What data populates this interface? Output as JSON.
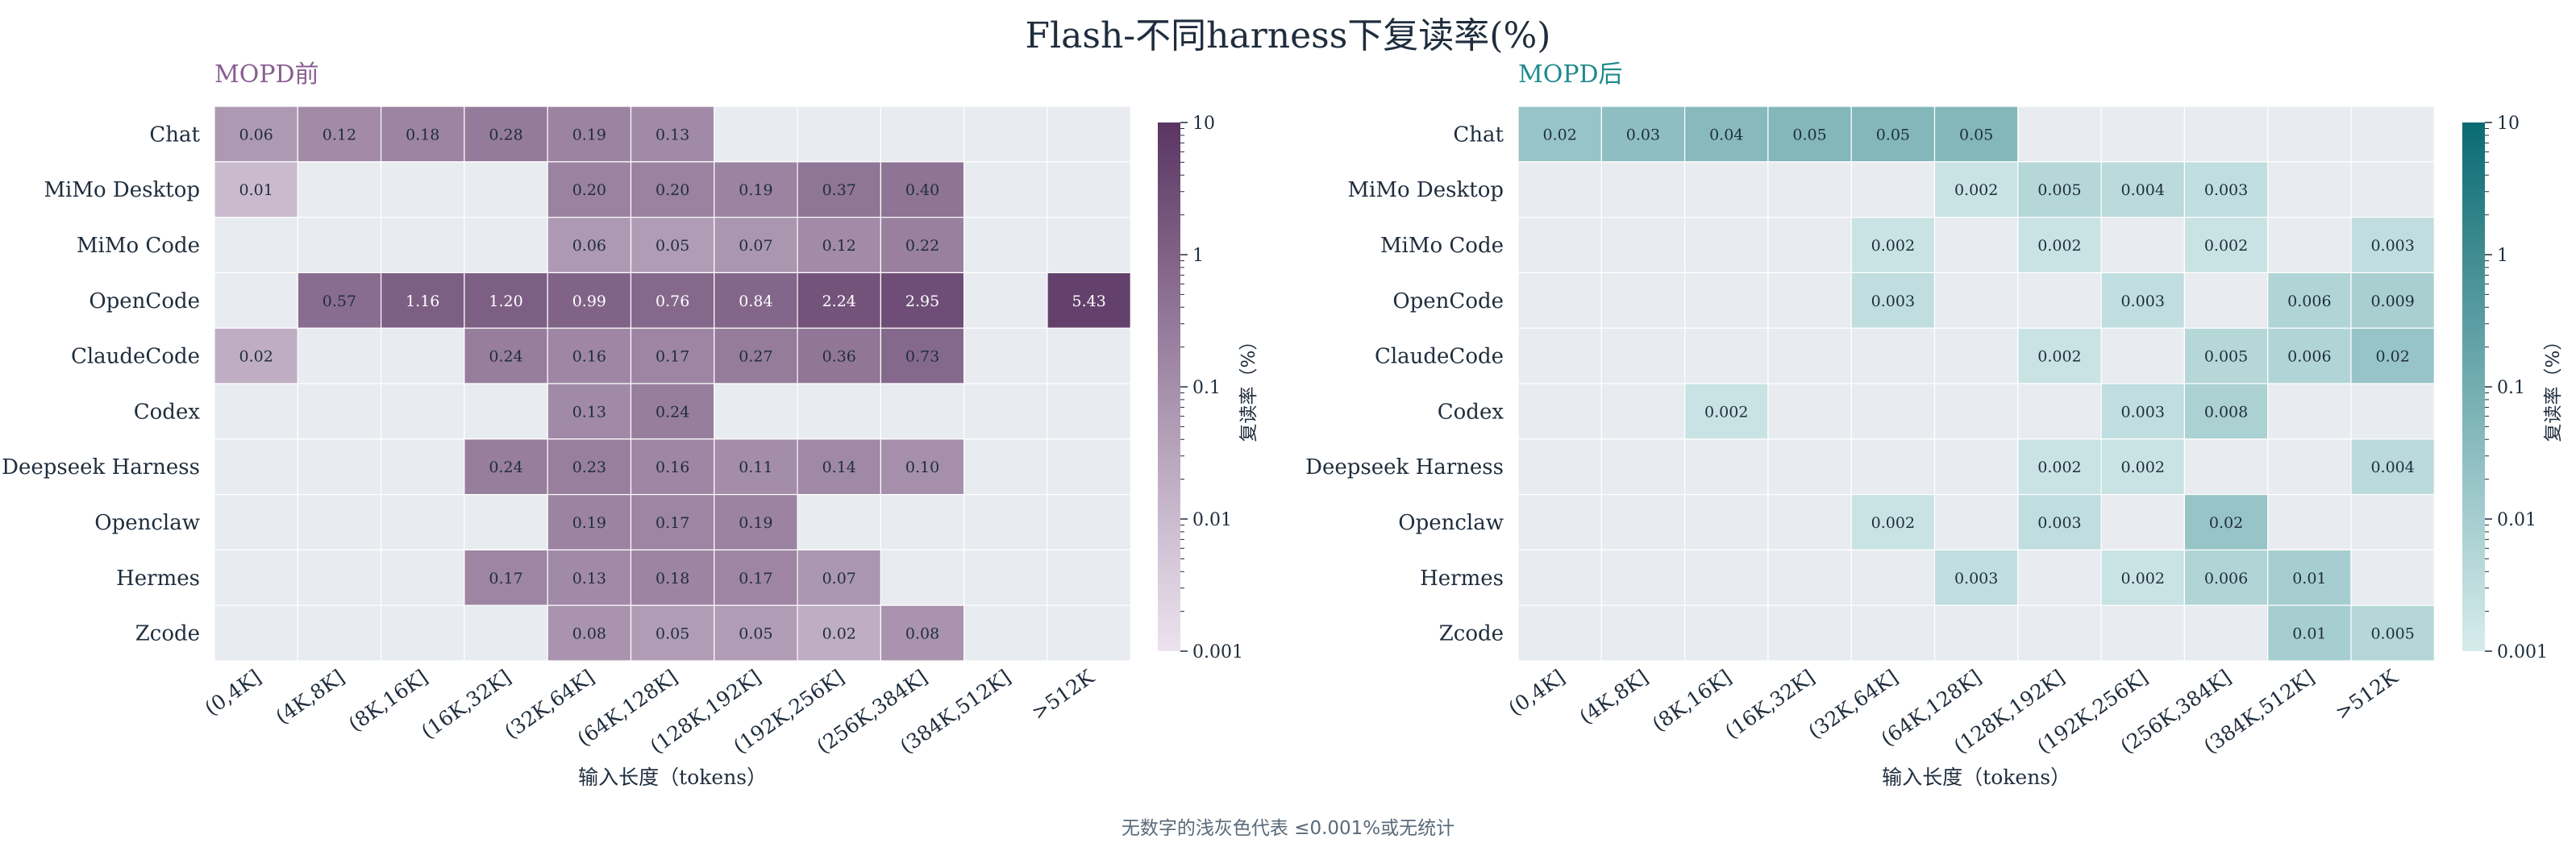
{
  "figure": {
    "title": "Flash-不同harness下复读率(%)",
    "footnote": "无数字的浅灰色代表 ≤0.001%或无统计"
  },
  "colors": {
    "empty_cell": "#e8ebf0",
    "purple_low": "#ece3ef",
    "purple_high": "#5a3562",
    "teal_low": "#d6ecec",
    "teal_high": "#0a6a72",
    "left_title": "#8a5e92",
    "right_title": "#1f8a8c",
    "text": "#1f2d3d"
  },
  "chart_data": [
    {
      "type": "heatmap",
      "title": "MOPD前",
      "xlabel": "输入长度（tokens）",
      "ylabel": "",
      "colorbar_label": "复读率（%）",
      "color_scale": "log",
      "colorbar_ticks": [
        "10",
        "1",
        "0.1",
        "0.01",
        "0.001"
      ],
      "vmin": 0.001,
      "vmax": 10,
      "x_categories": [
        "(0,4K]",
        "(4K,8K]",
        "(8K,16K]",
        "(16K,32K]",
        "(32K,64K]",
        "(64K,128K]",
        "(128K,192K]",
        "(192K,256K]",
        "(256K,384K]",
        "(384K,512K]",
        ">512K"
      ],
      "y_categories": [
        "Chat",
        "MiMo Desktop",
        "MiMo Code",
        "OpenCode",
        "ClaudeCode",
        "Codex",
        "Deepseek Harness",
        "Openclaw",
        "Hermes",
        "Zcode"
      ],
      "values": [
        [
          "0.06",
          "0.12",
          "0.18",
          "0.28",
          "0.19",
          "0.13",
          null,
          null,
          null,
          null,
          null
        ],
        [
          "0.01",
          null,
          null,
          null,
          "0.20",
          "0.20",
          "0.19",
          "0.37",
          "0.40",
          null,
          null
        ],
        [
          null,
          null,
          null,
          null,
          "0.06",
          "0.05",
          "0.07",
          "0.12",
          "0.22",
          null,
          null
        ],
        [
          null,
          "0.57",
          "1.16",
          "1.20",
          "0.99",
          "0.76",
          "0.84",
          "2.24",
          "2.95",
          null,
          "5.43"
        ],
        [
          "0.02",
          null,
          null,
          "0.24",
          "0.16",
          "0.17",
          "0.27",
          "0.36",
          "0.73",
          null,
          null
        ],
        [
          null,
          null,
          null,
          null,
          "0.13",
          "0.24",
          null,
          null,
          null,
          null,
          null
        ],
        [
          null,
          null,
          null,
          "0.24",
          "0.23",
          "0.16",
          "0.11",
          "0.14",
          "0.10",
          null,
          null
        ],
        [
          null,
          null,
          null,
          null,
          "0.19",
          "0.17",
          "0.19",
          null,
          null,
          null,
          null
        ],
        [
          null,
          null,
          null,
          "0.17",
          "0.13",
          "0.18",
          "0.17",
          "0.07",
          null,
          null,
          null
        ],
        [
          null,
          null,
          null,
          null,
          "0.08",
          "0.05",
          "0.05",
          "0.02",
          "0.08",
          null,
          null
        ]
      ]
    },
    {
      "type": "heatmap",
      "title": "MOPD后",
      "xlabel": "输入长度（tokens）",
      "ylabel": "",
      "colorbar_label": "复读率（%）",
      "color_scale": "log",
      "colorbar_ticks": [
        "10",
        "1",
        "0.1",
        "0.01",
        "0.001"
      ],
      "vmin": 0.001,
      "vmax": 10,
      "x_categories": [
        "(0,4K]",
        "(4K,8K]",
        "(8K,16K]",
        "(16K,32K]",
        "(32K,64K]",
        "(64K,128K]",
        "(128K,192K]",
        "(192K,256K]",
        "(256K,384K]",
        "(384K,512K]",
        ">512K"
      ],
      "y_categories": [
        "Chat",
        "MiMo Desktop",
        "MiMo Code",
        "OpenCode",
        "ClaudeCode",
        "Codex",
        "Deepseek Harness",
        "Openclaw",
        "Hermes",
        "Zcode"
      ],
      "values": [
        [
          "0.02",
          "0.03",
          "0.04",
          "0.05",
          "0.05",
          "0.05",
          null,
          null,
          null,
          null,
          null
        ],
        [
          null,
          null,
          null,
          null,
          null,
          "0.002",
          "0.005",
          "0.004",
          "0.003",
          null,
          null
        ],
        [
          null,
          null,
          null,
          null,
          "0.002",
          null,
          "0.002",
          null,
          "0.002",
          null,
          "0.003"
        ],
        [
          null,
          null,
          null,
          null,
          "0.003",
          null,
          null,
          "0.003",
          null,
          "0.006",
          "0.009"
        ],
        [
          null,
          null,
          null,
          null,
          null,
          null,
          "0.002",
          null,
          "0.005",
          "0.006",
          "0.02"
        ],
        [
          null,
          null,
          "0.002",
          null,
          null,
          null,
          null,
          "0.003",
          "0.008",
          null,
          null
        ],
        [
          null,
          null,
          null,
          null,
          null,
          null,
          "0.002",
          "0.002",
          null,
          null,
          "0.004"
        ],
        [
          null,
          null,
          null,
          null,
          "0.002",
          null,
          "0.003",
          null,
          "0.02",
          null,
          null
        ],
        [
          null,
          null,
          null,
          null,
          null,
          "0.003",
          null,
          "0.002",
          "0.006",
          "0.01",
          null
        ],
        [
          null,
          null,
          null,
          null,
          null,
          null,
          null,
          null,
          null,
          "0.01",
          "0.005"
        ]
      ]
    }
  ]
}
